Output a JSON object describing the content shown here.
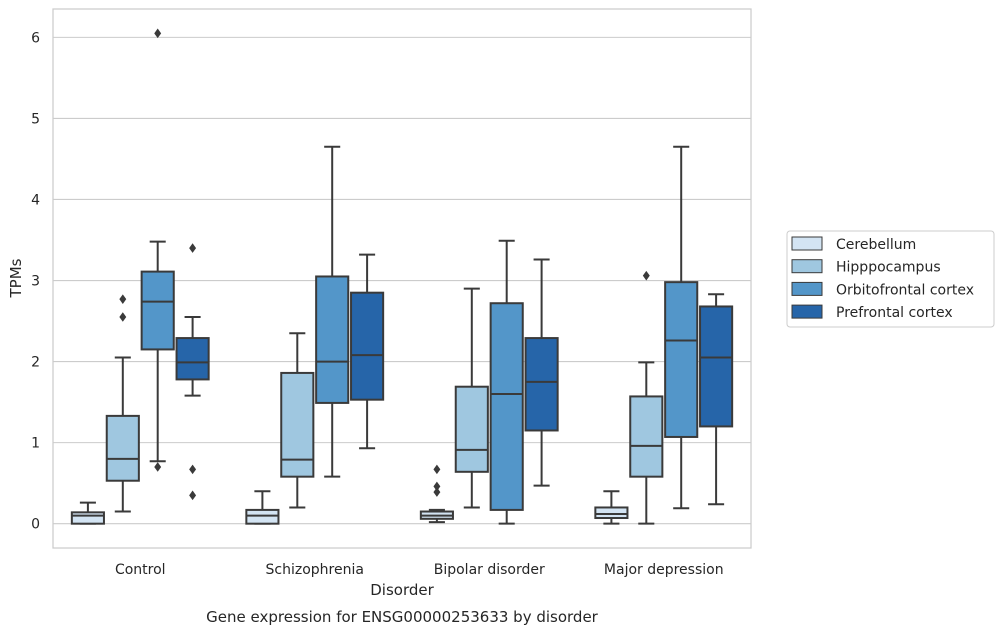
{
  "chart_data": {
    "type": "boxplot",
    "caption": "Gene expression for ENSG00000253633 by disorder",
    "xlabel": "Disorder",
    "ylabel": "TPMs",
    "ylim": [
      -0.3,
      6.35
    ],
    "yticks": [
      0,
      1,
      2,
      3,
      4,
      5,
      6
    ],
    "grid": "horizontal",
    "legend_position": "right",
    "categories": [
      "Control",
      "Schizophrenia",
      "Bipolar disorder",
      "Major depression"
    ],
    "series": [
      {
        "name": "Cerebellum",
        "color": "#d3e4f3",
        "boxes": [
          {
            "min": 0.0,
            "q1": 0.0,
            "median": 0.1,
            "q3": 0.14,
            "max": 0.26,
            "outliers": []
          },
          {
            "min": 0.0,
            "q1": 0.0,
            "median": 0.1,
            "q3": 0.17,
            "max": 0.4,
            "outliers": []
          },
          {
            "min": 0.02,
            "q1": 0.06,
            "median": 0.1,
            "q3": 0.15,
            "max": 0.17,
            "outliers": [
              0.39,
              0.46,
              0.67
            ]
          },
          {
            "min": 0.0,
            "q1": 0.07,
            "median": 0.12,
            "q3": 0.2,
            "max": 0.4,
            "outliers": []
          }
        ]
      },
      {
        "name": "Hipppocampus",
        "color": "#9fc7e0",
        "boxes": [
          {
            "min": 0.15,
            "q1": 0.53,
            "median": 0.8,
            "q3": 1.33,
            "max": 2.05,
            "outliers": [
              2.55,
              2.77
            ]
          },
          {
            "min": 0.2,
            "q1": 0.58,
            "median": 0.79,
            "q3": 1.86,
            "max": 2.35,
            "outliers": []
          },
          {
            "min": 0.2,
            "q1": 0.64,
            "median": 0.91,
            "q3": 1.69,
            "max": 2.9,
            "outliers": []
          },
          {
            "min": 0.0,
            "q1": 0.58,
            "median": 0.96,
            "q3": 1.57,
            "max": 1.99,
            "outliers": [
              3.06
            ]
          }
        ]
      },
      {
        "name": "Orbitofrontal cortex",
        "color": "#5396c9",
        "boxes": [
          {
            "min": 0.77,
            "q1": 2.15,
            "median": 2.74,
            "q3": 3.11,
            "max": 3.48,
            "outliers": [
              6.05,
              0.7
            ]
          },
          {
            "min": 0.58,
            "q1": 1.49,
            "median": 2.0,
            "q3": 3.05,
            "max": 4.65,
            "outliers": []
          },
          {
            "min": 0.0,
            "q1": 0.17,
            "median": 1.6,
            "q3": 2.72,
            "max": 3.49,
            "outliers": []
          },
          {
            "min": 0.19,
            "q1": 1.07,
            "median": 2.26,
            "q3": 2.98,
            "max": 4.65,
            "outliers": []
          }
        ]
      },
      {
        "name": "Prefrontal cortex",
        "color": "#2665a9",
        "boxes": [
          {
            "min": 1.58,
            "q1": 1.78,
            "median": 1.99,
            "q3": 2.29,
            "max": 2.55,
            "outliers": [
              3.4,
              0.67,
              0.35
            ]
          },
          {
            "min": 0.93,
            "q1": 1.53,
            "median": 2.08,
            "q3": 2.85,
            "max": 3.32,
            "outliers": []
          },
          {
            "min": 0.47,
            "q1": 1.15,
            "median": 1.75,
            "q3": 2.29,
            "max": 3.26,
            "outliers": []
          },
          {
            "min": 0.24,
            "q1": 1.2,
            "median": 2.05,
            "q3": 2.68,
            "max": 2.83,
            "outliers": []
          }
        ]
      }
    ]
  }
}
